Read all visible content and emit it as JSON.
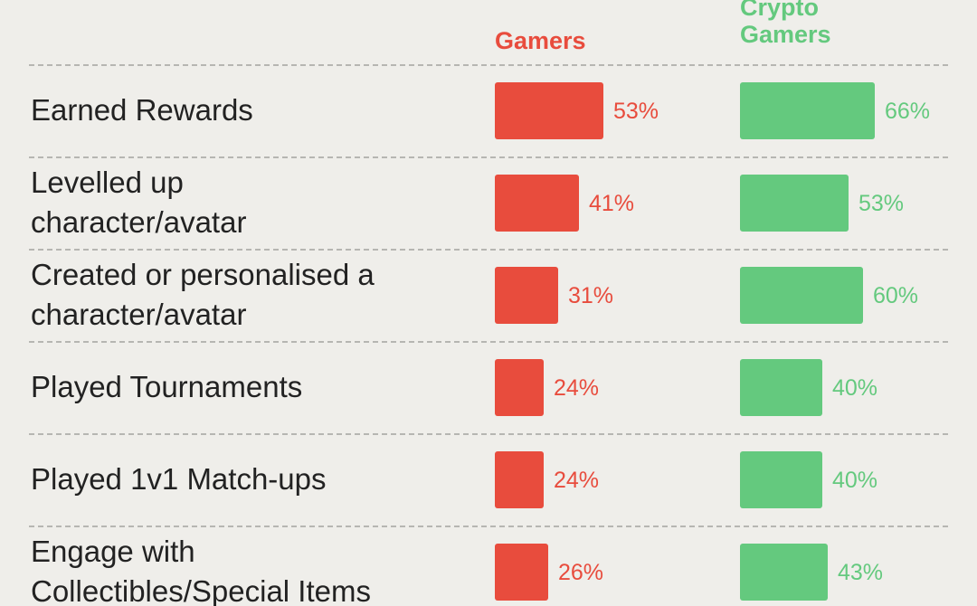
{
  "colors": {
    "gamers": "#e84c3d",
    "crypto": "#64c97e",
    "background": "#efeeea",
    "text": "#222222",
    "divider": "#b6b6b2"
  },
  "chart_data": {
    "type": "bar",
    "orientation": "horizontal",
    "title": "",
    "legend": "column headers at top",
    "grid": false,
    "series": [
      {
        "name": "Gamers",
        "values": [
          53,
          41,
          31,
          24,
          24,
          26
        ],
        "labels": [
          "53%",
          "41%",
          "31%",
          "24%",
          "24%",
          "26%"
        ]
      },
      {
        "name": "Crypto\nGamers",
        "values": [
          66,
          53,
          60,
          40,
          40,
          43
        ],
        "labels": [
          "66%",
          "53%",
          "60%",
          "40%",
          "40%",
          "43%"
        ]
      }
    ],
    "categories": [
      "Earned Rewards",
      "Levelled up\ncharacter/avatar",
      "Created or personalised a\ncharacter/avatar",
      "Played Tournaments",
      "Played 1v1 Match-ups",
      "Engage with\nCollectibles/Special Items"
    ],
    "unit": "%"
  }
}
